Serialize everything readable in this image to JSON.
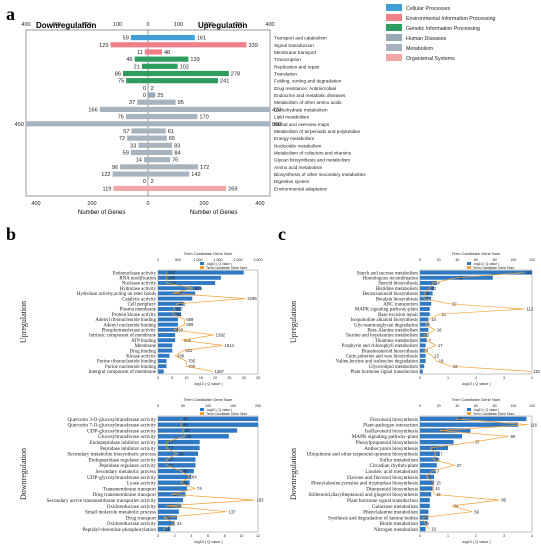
{
  "panel_labels": {
    "a": "a",
    "b": "b",
    "c": "c"
  },
  "chart_data": [
    {
      "panel": "a",
      "type": "bar",
      "orientation": "horizontal-diverging",
      "left_title": "Downregulation",
      "right_title": "Upregulation",
      "xlabel_left": "Number of Genes",
      "xlabel_right": "Number of Genes",
      "left_ticks": [
        "400",
        "300",
        "200",
        "100",
        "0"
      ],
      "right_ticks": [
        "0",
        "100",
        "200",
        "300",
        "400"
      ],
      "bottom_left_ticks": [
        "400",
        "200",
        "0"
      ],
      "bottom_right_ticks": [
        "0",
        "200",
        "400"
      ],
      "top_left_ticks": [
        "400",
        "300",
        "200",
        "100",
        "0"
      ],
      "top_right_ticks": [
        "0",
        "100",
        "200",
        "300",
        "400"
      ],
      "axis_max": 420,
      "legend": [
        {
          "label": "Cellular Processes",
          "color": "#3fa0d6"
        },
        {
          "label": "Environmental Information Processing",
          "color": "#f07f87"
        },
        {
          "label": "Genetic Information Processing",
          "color": "#2e9b5f"
        },
        {
          "label": "Human Diseases",
          "color": "#9aa9b8"
        },
        {
          "label": "Metabolism",
          "color": "#a7b4c0"
        },
        {
          "label": "Organismal Systems",
          "color": "#f2a6a6"
        }
      ],
      "categories": [
        {
          "name": "Transport and catabolism",
          "down": 59,
          "up": 161,
          "color": "#3fa0d6"
        },
        {
          "name": "Signal transduction",
          "down": 129,
          "up": 339,
          "color": "#f07f87"
        },
        {
          "name": "Membrane transport",
          "down": 11,
          "up": 48,
          "color": "#f07f87"
        },
        {
          "name": "Transcription",
          "down": 46,
          "up": 139,
          "color": "#2e9b5f"
        },
        {
          "name": "Replication and repair",
          "down": 21,
          "up": 102,
          "color": "#2e9b5f"
        },
        {
          "name": "Translation",
          "down": 86,
          "up": 278,
          "color": "#2e9b5f"
        },
        {
          "name": "Folding, sorting and degradation",
          "down": 75,
          "up": 241,
          "color": "#2e9b5f"
        },
        {
          "name": "Drug resistance: Antimicrobial",
          "down": 0,
          "up": 2,
          "color": "#9aa9b8"
        },
        {
          "name": "Endocrine and metabolic diseases",
          "down": 0,
          "up": 25,
          "color": "#9aa9b8"
        },
        {
          "name": "Metabolism of other amino acids",
          "down": 37,
          "up": 95,
          "color": "#a7b4c0"
        },
        {
          "name": "Carbohydrate metabolism",
          "down": 166,
          "up": 420,
          "color": "#a7b4c0"
        },
        {
          "name": "Lipid metabolism",
          "down": 76,
          "up": 170,
          "color": "#a7b4c0"
        },
        {
          "name": "Global and overview maps",
          "down": 450,
          "up": 860,
          "color": "#a7b4c0"
        },
        {
          "name": "Metabolism of terpenoids and polyketides",
          "down": 57,
          "up": 61,
          "color": "#a7b4c0"
        },
        {
          "name": "Energy metabolism",
          "down": 72,
          "up": 65,
          "color": "#a7b4c0"
        },
        {
          "name": "Nucleotide metabolism",
          "down": 33,
          "up": 83,
          "color": "#a7b4c0"
        },
        {
          "name": "Metabolism of cofactors and vitamins",
          "down": 59,
          "up": 84,
          "color": "#a7b4c0"
        },
        {
          "name": "Glycan biosynthesis and metabolism",
          "down": 14,
          "up": 76,
          "color": "#a7b4c0"
        },
        {
          "name": "Amino acid metabolism",
          "down": 96,
          "up": 172,
          "color": "#a7b4c0"
        },
        {
          "name": "Biosynthesis of other secondary metabolites",
          "down": 122,
          "up": 142,
          "color": "#a7b4c0"
        },
        {
          "name": "Digestive system",
          "down": 0,
          "up": 2,
          "color": "#f2a6a6"
        },
        {
          "name": "Environmental adaptation",
          "down": 119,
          "up": 269,
          "color": "#f2a6a6"
        }
      ]
    },
    {
      "panel": "b-up",
      "type": "bar",
      "side_label": "Upregulation",
      "top_axis_title": "Term Candidate Gene Num",
      "xlabel": "-log10 ( Q value )",
      "legend": [
        "-log10 ( Q value )",
        "Term Candidate Gene Num"
      ],
      "top_ticks": [
        "0",
        "500",
        "1,000",
        "1,500",
        "2,000",
        "2,500"
      ],
      "bottom_ticks": [
        "0",
        "5",
        "10",
        "15",
        "20",
        "25",
        "30",
        "35"
      ],
      "q_max": 35,
      "n_max": 2500,
      "terms": [
        "Endonuclease activity",
        "RNA modification",
        "Nuclease activity",
        "Hydrolase activity",
        "Hydrolase activity,acting on ester bonds",
        "Catalytic activity",
        "Cell periphery",
        "Plasma membrane",
        "Protein kinase activity",
        "Adenyl ribonucleotide binding",
        "Adenyl nucleotide binding",
        "Phosphotransferase activity",
        "Intrinsic component of membrane",
        "ATP binding",
        "Membrane",
        "Drug binding",
        "Kinase activity",
        "Purine ribonucleotide binding",
        "Purine nucleotide binding",
        "Intergral component of membrane"
      ],
      "q_values": [
        30,
        22,
        20,
        15,
        13,
        12,
        9,
        8,
        8,
        7,
        7,
        7,
        6,
        6,
        5,
        5,
        4,
        3,
        3,
        2
      ],
      "gene_num": [
        203,
        205,
        214,
        876,
        372,
        2185,
        471,
        397,
        371,
        659,
        659,
        398,
        1392,
        598,
        1614,
        633,
        430,
        705,
        705,
        1367
      ]
    },
    {
      "panel": "b-down",
      "type": "bar",
      "side_label": "Downregulation",
      "top_axis_title": "Term Candidate Gene Num",
      "xlabel": "-log10 ( Q value )",
      "legend": [
        "-log10 ( Q value )",
        "Term Candidate Gene Num"
      ],
      "top_ticks": [
        "0",
        "50",
        "100",
        "150",
        "200"
      ],
      "bottom_ticks": [
        "0",
        "2",
        "4",
        "6",
        "8",
        "10",
        "12"
      ],
      "q_max": 12,
      "n_max": 200,
      "terms": [
        "Quercetin 3-O-glucosyltransferase activity",
        "Quercetin 7-O-glucosyltransferase activity",
        "UDP-glucosyltransferase activity",
        "Glucosyltransferase activity",
        "Endopeptidase inhibitor activity",
        "Peptidase inhibitor activity",
        "Secondary metabolite biosynthetic process",
        "Endopeptidase regulator activity",
        "Peptidase regulator activity",
        "Secondary metabolic process",
        "UDP-glycosyltransferase activity",
        "Lyase activity",
        "Transmembrane transport",
        "Drug transmembrane transport",
        "Secondary active transmembrane transporter activity",
        "Oxidoreductase activity",
        "Small molecule metabolic process",
        "Drug transport",
        "Oxidoreductase activity",
        "Peptidyl-threonine phosphorylation"
      ],
      "q_values": [
        12,
        12,
        9.5,
        8.5,
        5,
        5,
        4.8,
        4.5,
        4.5,
        4.3,
        4,
        3.8,
        3.5,
        3.3,
        3,
        2.8,
        2.5,
        2.3,
        2,
        1.5
      ],
      "gene_num": [
        46,
        46,
        50,
        53,
        17,
        17,
        38,
        17,
        17,
        46,
        64,
        45,
        74,
        27,
        193,
        16,
        137,
        12,
        34,
        11
      ]
    },
    {
      "panel": "c-up",
      "type": "bar",
      "side_label": "Upregulation",
      "top_axis_title": "Term Candidate Gene Num",
      "xlabel": "-log10 ( Q value )",
      "legend": [
        "-log10 ( Q value )",
        "Term Candidate Gene Num"
      ],
      "top_ticks": [
        "0",
        "20",
        "40",
        "60",
        "80",
        "100",
        "120"
      ],
      "bottom_ticks": [
        "0",
        "1",
        "2",
        "3",
        "4"
      ],
      "q_max": 4,
      "n_max": 120,
      "terms": [
        "Starch and sucrose metabolism",
        "Homologous recombination",
        "Steroid biosynthesis",
        "Histidine metabolism",
        "Benzoxazinoid biosynthesis",
        "Betalain biosynthesis",
        "ABC transporters",
        "MAPK signaling pathway-plant",
        "Base excision repair",
        "Isoquinoline alkaloid biosynthesis",
        "Glycosaminoglycan degradation",
        "Beta-Alanine metabolism",
        "Taurine and hypotaurine metabolism",
        "Thiamine metabolism",
        "Porphyrin and chlorophyll metabolism",
        "Brassinosteroid biosynthesis",
        "Cutin,suberine and wax biosynthesis",
        "Valine,leucine and isoleucine degradation",
        "Glycerolipid metabolism",
        "Plant hormone signal transduction"
      ],
      "q_values": [
        4,
        2.6,
        0.6,
        0.5,
        0.45,
        0.4,
        0.4,
        0.35,
        0.35,
        0.3,
        0.3,
        0.3,
        0.25,
        0.25,
        0.2,
        0.2,
        0.2,
        0.2,
        0.15,
        0.1
      ],
      "gene_num": [
        111,
        39,
        14,
        10,
        5,
        4,
        32,
        112,
        21,
        10,
        6,
        16,
        5,
        7,
        17,
        4,
        13,
        18,
        33,
        119
      ]
    },
    {
      "panel": "c-down",
      "type": "bar",
      "side_label": "Downregulation",
      "top_axis_title": "Term Candidate Gene Num",
      "xlabel": "-log10 ( Q value )",
      "legend": [
        "-log10 ( Q value )",
        "Term Candidate Gene Num"
      ],
      "top_ticks": [
        "0",
        "20",
        "40",
        "60",
        "80",
        "100",
        "120"
      ],
      "bottom_ticks": [
        "0",
        "1",
        "2",
        "3",
        "4"
      ],
      "q_max": 4,
      "n_max": 120,
      "terms": [
        "Flavonoid biosynthesis",
        "Plant-pathogen interaction",
        "Isoflavonoid biosynthesis",
        "MAPK signaling pathway-plant",
        "Phenylpropanoid biosynthesis",
        "Anthocyanin biosynthesis",
        "Ubiquinone and other terpenoid-quinone biosynthesis",
        "Sulfur metabolism",
        "Circadian rhythm-plant",
        "Linoleic acid metabolism",
        "Flavone and flavonol biosynthesis",
        "Phenylalanine,tyrosine and tryptophan biosynthesis",
        "Diterpenoid biosynthesis",
        "Stilbenoid,diarylheptanoid and gingerol biosynthesis",
        "Plant hormone signal transduction",
        "Galactose metabolism",
        "Phenylalanine metabolism",
        "Synthesis and degradation of ketone bodies",
        "Biotin metabolism",
        "Nitrogen metabolism"
      ],
      "q_values": [
        3.8,
        3.5,
        1.8,
        1.5,
        1.2,
        1.0,
        0.7,
        0.65,
        0.6,
        0.55,
        0.5,
        0.5,
        0.45,
        0.4,
        0.35,
        0.35,
        0.3,
        0.3,
        0.25,
        0.2
      ],
      "gene_num": [
        38,
        116,
        21,
        95,
        57,
        11,
        17,
        14,
        37,
        13,
        7,
        15,
        14,
        15,
        85,
        34,
        56,
        3,
        5,
        10
      ]
    }
  ]
}
